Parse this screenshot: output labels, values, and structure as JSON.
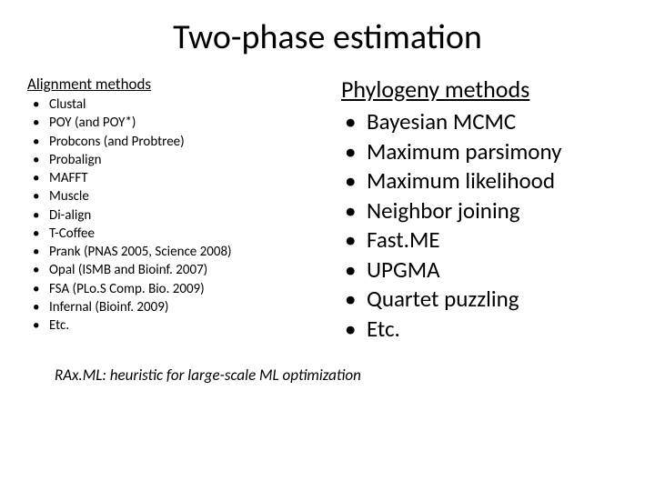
{
  "title": "Two-phase estimation",
  "left": {
    "heading": "Alignment methods",
    "items": [
      "Clustal",
      "POY (and POY*)",
      "Probcons (and Probtree)",
      "Probalign",
      "MAFFT",
      "Muscle",
      "Di-align",
      "T-Coffee",
      "Prank (PNAS 2005, Science 2008)",
      "Opal (ISMB and Bioinf. 2007)",
      "FSA (PLo.S Comp. Bio. 2009)",
      "Infernal (Bioinf. 2009)",
      "Etc."
    ]
  },
  "right": {
    "heading": "Phylogeny methods",
    "items": [
      "Bayesian MCMC",
      "Maximum parsimony",
      "Maximum likelihood",
      "Neighbor joining",
      "Fast.ME",
      "UPGMA",
      "Quartet puzzling",
      "Etc."
    ]
  },
  "footnote": "RAx.ML: heuristic for large-scale ML optimization",
  "colors": {
    "background": "#ffffff",
    "text": "#000000"
  },
  "fontsize": {
    "title": 38,
    "heading_small": 17,
    "heading_large": 26,
    "list_small": 15,
    "list_large": 25,
    "footnote": 17
  }
}
